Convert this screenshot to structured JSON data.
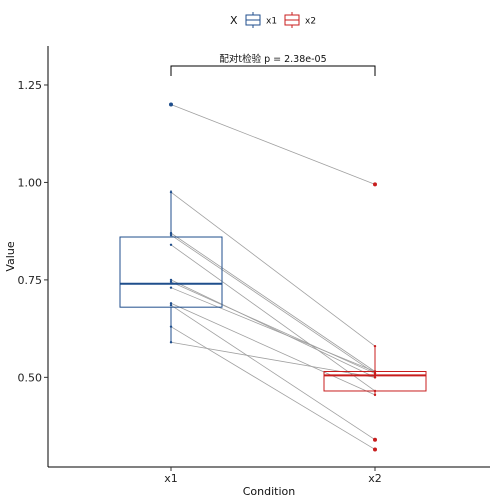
{
  "chart_data": {
    "type": "box",
    "xlabel": "Condition",
    "ylabel": "Value",
    "categories": [
      "x1",
      "x2"
    ],
    "ylim": [
      0.27,
      1.35
    ],
    "yticks": [
      0.5,
      0.75,
      1.0,
      1.25
    ],
    "ytick_labels": [
      "0.50",
      "0.75",
      "1.00",
      "1.25"
    ],
    "grid": false,
    "legend": {
      "title": "X",
      "position": "top",
      "entries": [
        {
          "label": "x1",
          "color": "#1f4e8c"
        },
        {
          "label": "x2",
          "color": "#c81e1e"
        }
      ]
    },
    "annotation": {
      "text": "配对t检验 p = 2.38e-05",
      "groups": [
        "x1",
        "x2"
      ]
    },
    "series": [
      {
        "name": "x1",
        "color": "#1f4e8c",
        "box": {
          "whisker_low": 0.59,
          "q1": 0.68,
          "median": 0.74,
          "q3": 0.86,
          "whisker_high": 0.98
        },
        "outliers": [
          1.2
        ]
      },
      {
        "name": "x2",
        "color": "#c81e1e",
        "box": {
          "whisker_low": 0.455,
          "q1": 0.465,
          "median": 0.505,
          "q3": 0.515,
          "whisker_high": 0.58
        },
        "outliers": [
          0.995,
          0.34,
          0.315
        ]
      }
    ],
    "pairs": [
      [
        1.2,
        0.995
      ],
      [
        0.975,
        0.58
      ],
      [
        0.87,
        0.515
      ],
      [
        0.865,
        0.51
      ],
      [
        0.84,
        0.465
      ],
      [
        0.75,
        0.5
      ],
      [
        0.745,
        0.51
      ],
      [
        0.73,
        0.515
      ],
      [
        0.69,
        0.455
      ],
      [
        0.685,
        0.34
      ],
      [
        0.63,
        0.315
      ],
      [
        0.59,
        0.5
      ]
    ]
  }
}
